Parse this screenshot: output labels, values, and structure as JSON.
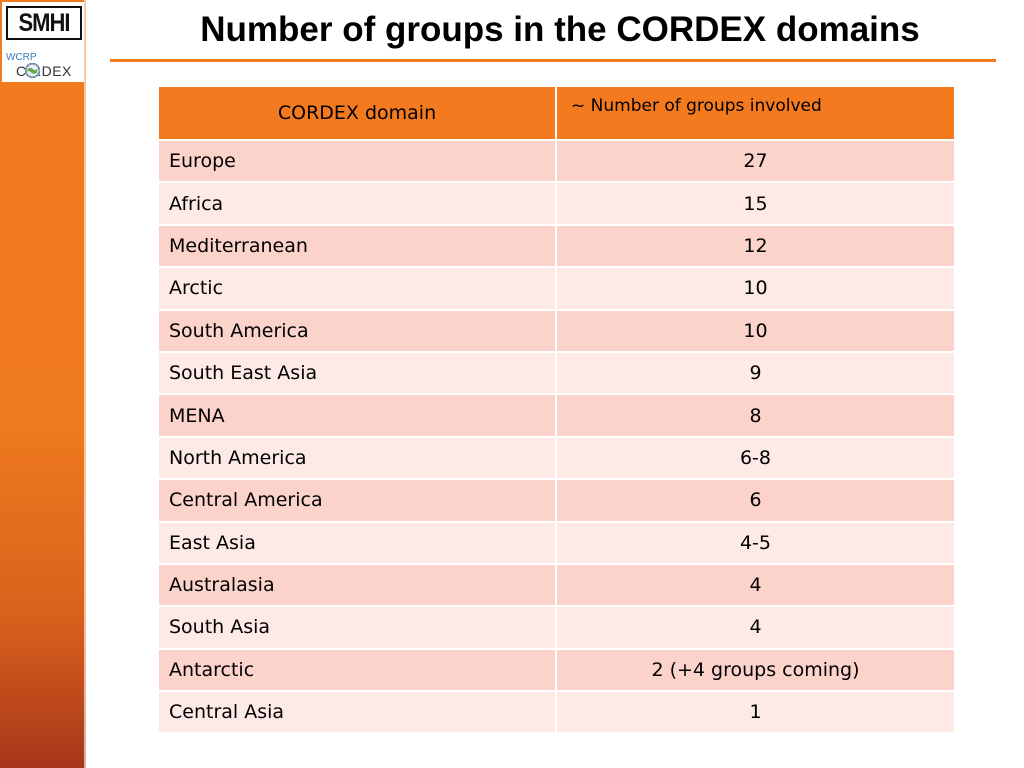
{
  "header": {
    "title": "Number of groups in the CORDEX domains"
  },
  "logos": {
    "smhi": "SMHI",
    "wcrp": "WCRP",
    "cordex": "C  RDEX"
  },
  "colors": {
    "accent": "#f47a1f",
    "row_odd": "#fbd3ca",
    "row_even": "#fde9e5"
  },
  "table": {
    "headers": [
      "CORDEX domain",
      "~ Number of groups involved"
    ],
    "rows": [
      [
        "Europe",
        "27"
      ],
      [
        "Africa",
        "15"
      ],
      [
        "Mediterranean",
        "12"
      ],
      [
        "Arctic",
        "10"
      ],
      [
        "South America",
        "10"
      ],
      [
        "South East Asia",
        "9"
      ],
      [
        "MENA",
        "8"
      ],
      [
        "North America",
        "6-8"
      ],
      [
        "Central America",
        "6"
      ],
      [
        "East Asia",
        "4-5"
      ],
      [
        "Australasia",
        "4"
      ],
      [
        "South Asia",
        "4"
      ],
      [
        "Antarctic",
        "2 (+4 groups coming)"
      ],
      [
        "Central Asia",
        "1"
      ]
    ]
  }
}
